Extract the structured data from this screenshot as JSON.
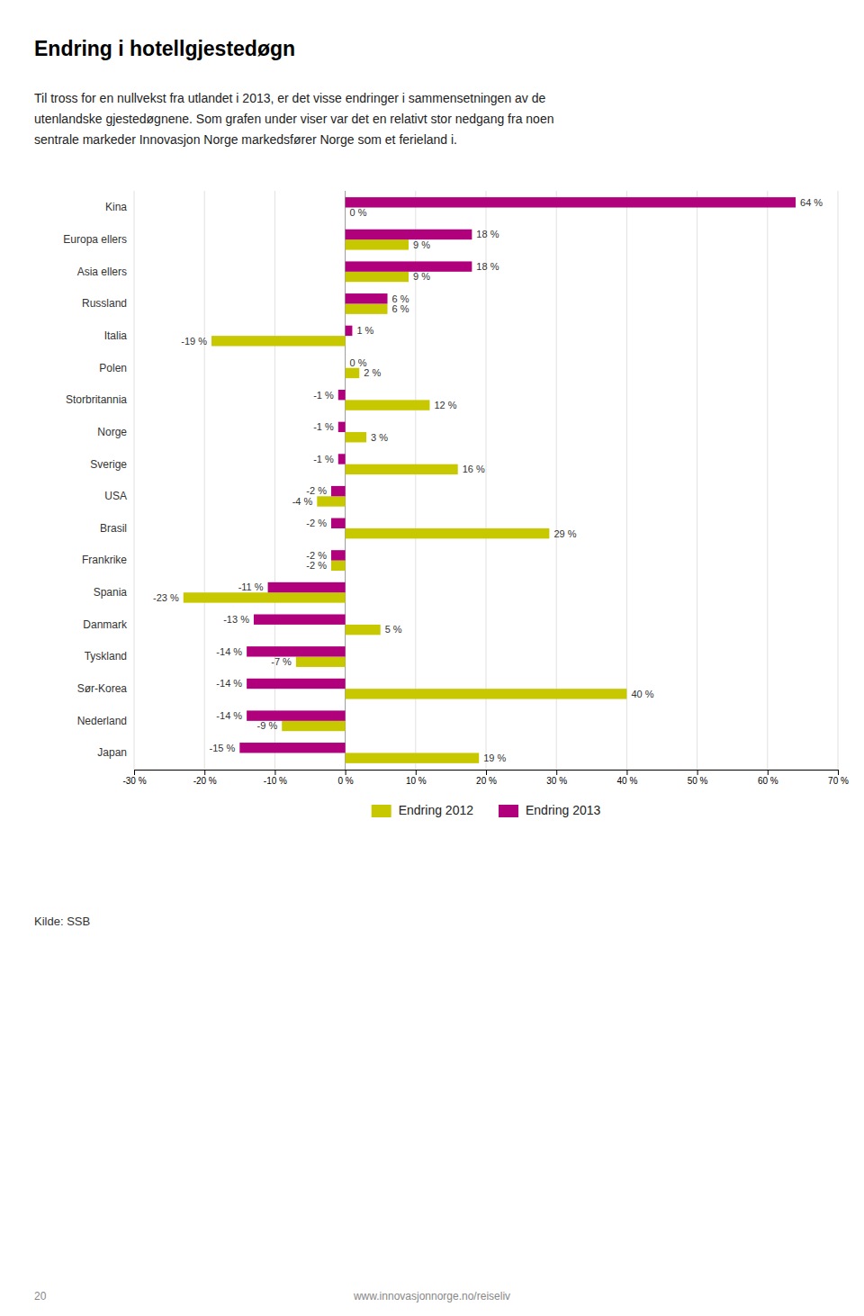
{
  "chart_data": {
    "type": "bar",
    "orientation": "horizontal",
    "title": "Endring i hotellgjestedøgn",
    "subtitle": [
      "Til tross for en nullvekst fra utlandet i 2013, er det visse endringer i sammensetningen av de",
      "utenlandske gjestedøgnene. Som grafen under viser var det en relativt stor nedgang fra noen",
      "sentrale markeder Innovasjon Norge markedsfører Norge som et ferieland i."
    ],
    "annotations": [
      "Kilde: SSB",
      "www.innovasjonnorge.no/reiseliv",
      "20"
    ],
    "categories": [
      "Kina",
      "Europa ellers",
      "Asia ellers",
      "Russland",
      "Italia",
      "Polen",
      "Storbritannia",
      "Norge",
      "Sverige",
      "USA",
      "Brasil",
      "Frankrike",
      "Spania",
      "Danmark",
      "Tyskland",
      "Sør-Korea",
      "Nederland",
      "Japan"
    ],
    "series": [
      {
        "name": "Endring 2012",
        "color": "#c8c800",
        "values": [
          0,
          9,
          9,
          6,
          -19,
          2,
          12,
          3,
          16,
          -4,
          29,
          -2,
          -23,
          5,
          -7,
          40,
          -9,
          19
        ],
        "value_labels": [
          "0 %",
          "9 %",
          "9 %",
          "6 %",
          "-19 %",
          "2 %",
          "12 %",
          "3 %",
          "16 %",
          "-4 %",
          "29 %",
          "-2 %",
          "-23 %",
          "5 %",
          "-7 %",
          "40 %",
          "-9 %",
          "19 %"
        ]
      },
      {
        "name": "Endring 2013",
        "color": "#b0007c",
        "values": [
          64,
          18,
          18,
          6,
          1,
          0,
          -1,
          -1,
          -1,
          -2,
          -2,
          -2,
          -11,
          -13,
          -14,
          -14,
          -14,
          -15
        ],
        "value_labels": [
          "64 %",
          "18 %",
          "18 %",
          "6 %",
          "1 %",
          "0 %",
          "-1 %",
          "-1 %",
          "-1 %",
          "-2 %",
          "-2 %",
          "-2 %",
          "-11 %",
          "-13 %",
          "-14 %",
          "-14 %",
          "-14 %",
          "-15 %"
        ]
      }
    ],
    "xlim": [
      -30,
      70
    ],
    "xticks": [
      {
        "value": -30,
        "label": "-30 %"
      },
      {
        "value": -20,
        "label": "-20 %"
      },
      {
        "value": -10,
        "label": "-10 %"
      },
      {
        "value": 0,
        "label": "0 %"
      },
      {
        "value": 10,
        "label": "10 %"
      },
      {
        "value": 20,
        "label": "20 %"
      },
      {
        "value": 30,
        "label": "30 %"
      },
      {
        "value": 40,
        "label": "40 %"
      },
      {
        "value": 50,
        "label": "50 %"
      },
      {
        "value": 60,
        "label": "60 %"
      },
      {
        "value": 70,
        "label": "70 %"
      }
    ],
    "grid": true,
    "legend": "bottom",
    "data_labels": true
  }
}
